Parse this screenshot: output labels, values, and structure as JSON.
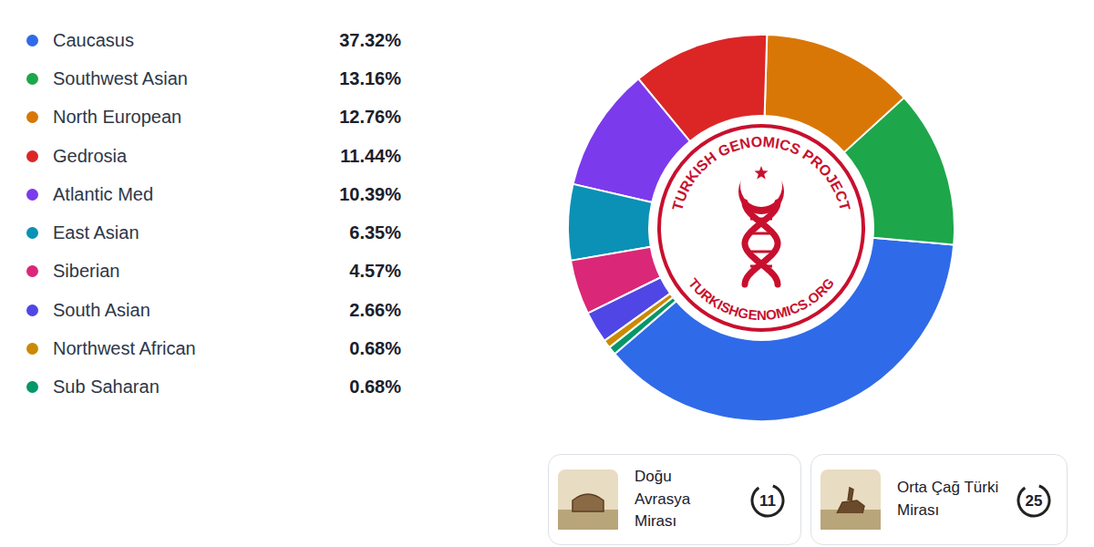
{
  "chart_data": {
    "type": "donut",
    "categories": [
      "Caucasus",
      "Southwest Asian",
      "North European",
      "Gedrosia",
      "Atlantic Med",
      "East Asian",
      "Siberian",
      "South Asian",
      "Northwest African",
      "Sub Saharan"
    ],
    "values": [
      37.32,
      13.16,
      12.76,
      11.44,
      10.39,
      6.35,
      4.57,
      2.66,
      0.68,
      0.68
    ],
    "value_labels": [
      "37.32%",
      "13.16%",
      "12.76%",
      "11.44%",
      "10.39%",
      "6.35%",
      "4.57%",
      "2.66%",
      "0.68%",
      "0.68%"
    ],
    "colors": [
      "#2f6ae8",
      "#1ea64b",
      "#d97706",
      "#dc2626",
      "#7c3aed",
      "#0a91b5",
      "#db2777",
      "#4f46e5",
      "#ca8a04",
      "#059669"
    ]
  },
  "logo": {
    "title": "TURKISH GENOMICS PROJECT",
    "url_text": "TURKISHGENOMICS.ORG"
  },
  "cards": [
    {
      "label": "Doğu Avrasya Mirası",
      "value": 11
    },
    {
      "label": "Orta Çağ Türki Mirası",
      "value": 25
    }
  ]
}
